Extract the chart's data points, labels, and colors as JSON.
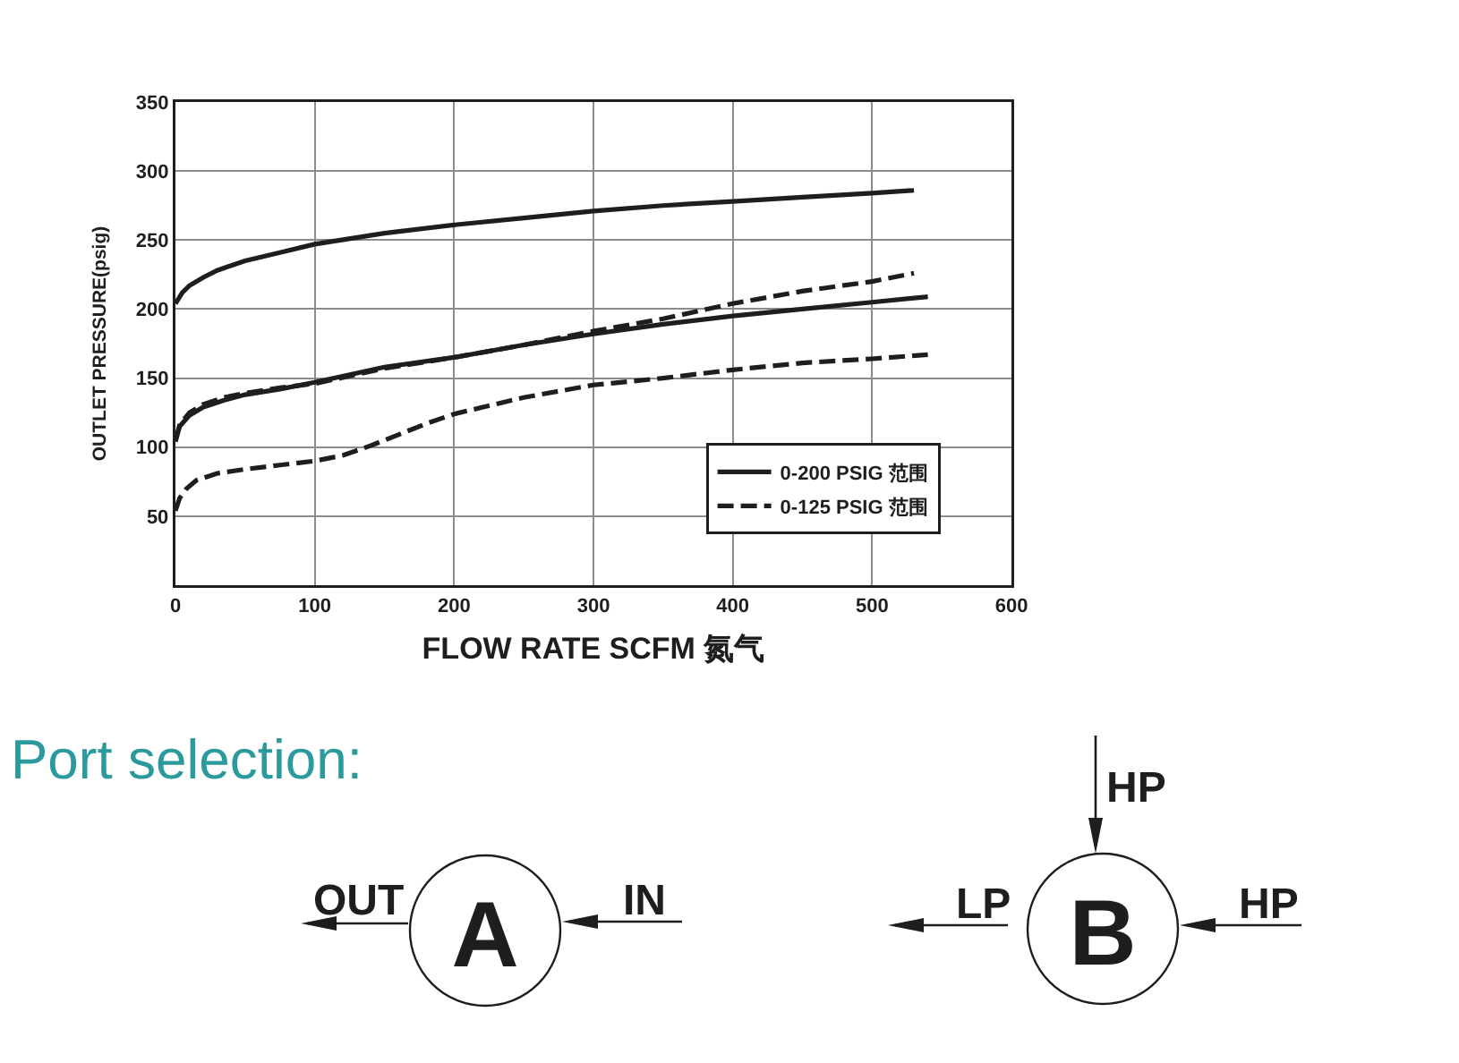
{
  "chart_data": [
    {
      "type": "line",
      "xlabel": "FLOW RATE SCFM 氮气",
      "ylabel": "OUTLET PRESSURE(psig)",
      "xlim": [
        0,
        600
      ],
      "ylim": [
        0,
        350
      ],
      "xticks": [
        0,
        100,
        200,
        300,
        400,
        500,
        600
      ],
      "yticks": [
        50,
        100,
        150,
        200,
        250,
        300,
        350
      ],
      "grid": true,
      "legend": "bottom right",
      "series": [
        {
          "name": "0-200 PSIG 范围",
          "color": "#1e1e1e",
          "line_style": "solid",
          "x": [
            0,
            5,
            10,
            20,
            30,
            50,
            75,
            100,
            150,
            200,
            250,
            300,
            350,
            400,
            450,
            500,
            530
          ],
          "values": [
            204,
            212,
            217,
            223,
            228,
            235,
            241,
            247,
            255,
            261,
            266,
            271,
            275,
            278,
            281,
            284,
            286
          ]
        },
        {
          "color": "#1e1e1e",
          "line_style": "solid",
          "x": [
            0,
            3,
            10,
            20,
            35,
            50,
            75,
            100,
            150,
            200,
            250,
            300,
            350,
            400,
            450,
            500,
            540
          ],
          "values": [
            104,
            115,
            123,
            129,
            134,
            138,
            142,
            147,
            158,
            165,
            174,
            182,
            189,
            195,
            200,
            205,
            209
          ]
        },
        {
          "name": "0-125 PSIG 范围",
          "color": "#1e1e1e",
          "line_style": "dashed",
          "x": [
            0,
            3,
            10,
            20,
            35,
            50,
            75,
            100,
            150,
            200,
            250,
            300,
            350,
            400,
            450,
            500,
            530
          ],
          "values": [
            105,
            116,
            125,
            131,
            136,
            139,
            143,
            146,
            157,
            165,
            174,
            184,
            193,
            204,
            213,
            220,
            226
          ]
        },
        {
          "color": "#1e1e1e",
          "line_style": "dashed",
          "x": [
            0,
            3,
            8,
            15,
            30,
            50,
            75,
            100,
            120,
            140,
            160,
            180,
            200,
            250,
            300,
            350,
            400,
            450,
            500,
            540
          ],
          "values": [
            54,
            63,
            70,
            76,
            81,
            84,
            87,
            90,
            94,
            101,
            109,
            117,
            124,
            136,
            145,
            150,
            156,
            161,
            164,
            167
          ]
        }
      ]
    },
    {
      "type": "other",
      "title": "Port selection:",
      "annotations": [
        "OUT",
        "A",
        "IN",
        "HP",
        "LP",
        "B",
        "HP"
      ]
    }
  ]
}
